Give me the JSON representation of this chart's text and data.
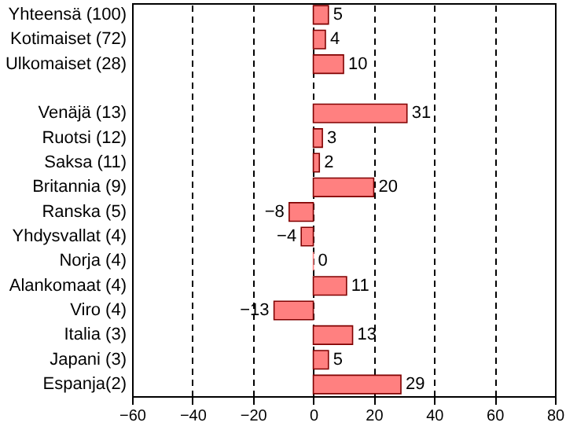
{
  "chart_data": {
    "type": "bar",
    "orientation": "horizontal",
    "categories": [
      "Yhteensä (100)",
      "Kotimaiset (72)",
      "Ulkomaiset (28)",
      null,
      "Venäjä (13)",
      "Ruotsi (12)",
      "Saksa (11)",
      "Britannia (9)",
      "Ranska (5)",
      "Yhdysvallat (4)",
      "Norja (4)",
      "Alankomaat (4)",
      "Viro (4)",
      "Italia (3)",
      "Japani (3)",
      "Espanja(2)"
    ],
    "values": [
      5,
      4,
      10,
      null,
      31,
      3,
      2,
      20,
      -8,
      -4,
      0,
      11,
      -13,
      13,
      5,
      29
    ],
    "color": "#ff8080",
    "data_labels": true,
    "xlim": [
      -60,
      80
    ],
    "xticks": [
      -60,
      -40,
      -20,
      0,
      20,
      40,
      60,
      80
    ],
    "grid": "x"
  }
}
